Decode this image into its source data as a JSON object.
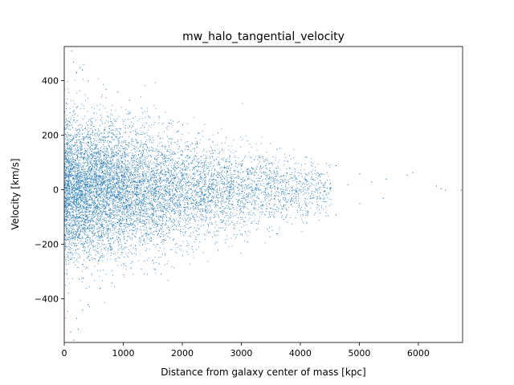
{
  "chart_data": {
    "type": "scatter",
    "title": "mw_halo_tangential_velocity",
    "xlabel": "Distance from galaxy center of mass [kpc]",
    "ylabel": "Velocity [km/s]",
    "xlim": [
      0,
      6750
    ],
    "ylim": [
      -560,
      525
    ],
    "x_ticks": [
      0,
      1000,
      2000,
      3000,
      4000,
      5000,
      6000
    ],
    "y_ticks": [
      -400,
      -200,
      0,
      200,
      400
    ],
    "x_tick_labels": [
      "0",
      "1000",
      "2000",
      "3000",
      "4000",
      "5000",
      "6000"
    ],
    "y_tick_labels": [
      "−400",
      "−200",
      "0",
      "200",
      "400"
    ],
    "grid": false,
    "marker_color": "#1f77b4",
    "series": [
      {
        "points": [
          [
            120,
            510
          ],
          [
            150,
            470
          ],
          [
            260,
            450
          ],
          [
            300,
            440
          ],
          [
            200,
            430
          ],
          [
            400,
            400
          ],
          [
            700,
            370
          ],
          [
            900,
            360
          ],
          [
            1100,
            330
          ],
          [
            1300,
            300
          ],
          [
            1600,
            270
          ],
          [
            2000,
            240
          ],
          [
            2600,
            210
          ],
          [
            3100,
            180
          ],
          [
            3600,
            150
          ],
          [
            4100,
            120
          ],
          [
            4600,
            90
          ],
          [
            5000,
            60
          ],
          [
            5450,
            40
          ],
          [
            5800,
            55
          ],
          [
            5900,
            65
          ],
          [
            6300,
            15
          ],
          [
            6380,
            5
          ],
          [
            6450,
            0
          ],
          [
            6720,
            0
          ],
          [
            5200,
            30
          ],
          [
            4800,
            20
          ],
          [
            4400,
            10
          ],
          [
            3900,
            0
          ],
          [
            3400,
            -10
          ],
          [
            100,
            -520
          ],
          [
            150,
            -550
          ],
          [
            200,
            -470
          ],
          [
            300,
            -440
          ],
          [
            230,
            -510
          ],
          [
            400,
            -420
          ],
          [
            600,
            -360
          ],
          [
            800,
            -340
          ],
          [
            1000,
            -310
          ],
          [
            1300,
            -290
          ],
          [
            1600,
            -270
          ],
          [
            2000,
            -240
          ],
          [
            2600,
            -220
          ],
          [
            3100,
            -190
          ],
          [
            3600,
            -160
          ],
          [
            4100,
            -120
          ],
          [
            4600,
            -90
          ],
          [
            5000,
            -50
          ],
          [
            5400,
            -30
          ],
          [
            1500,
            20
          ],
          [
            2500,
            -40
          ],
          [
            500,
            60
          ],
          [
            3000,
            40
          ],
          [
            700,
            -90
          ]
        ]
      }
    ]
  }
}
